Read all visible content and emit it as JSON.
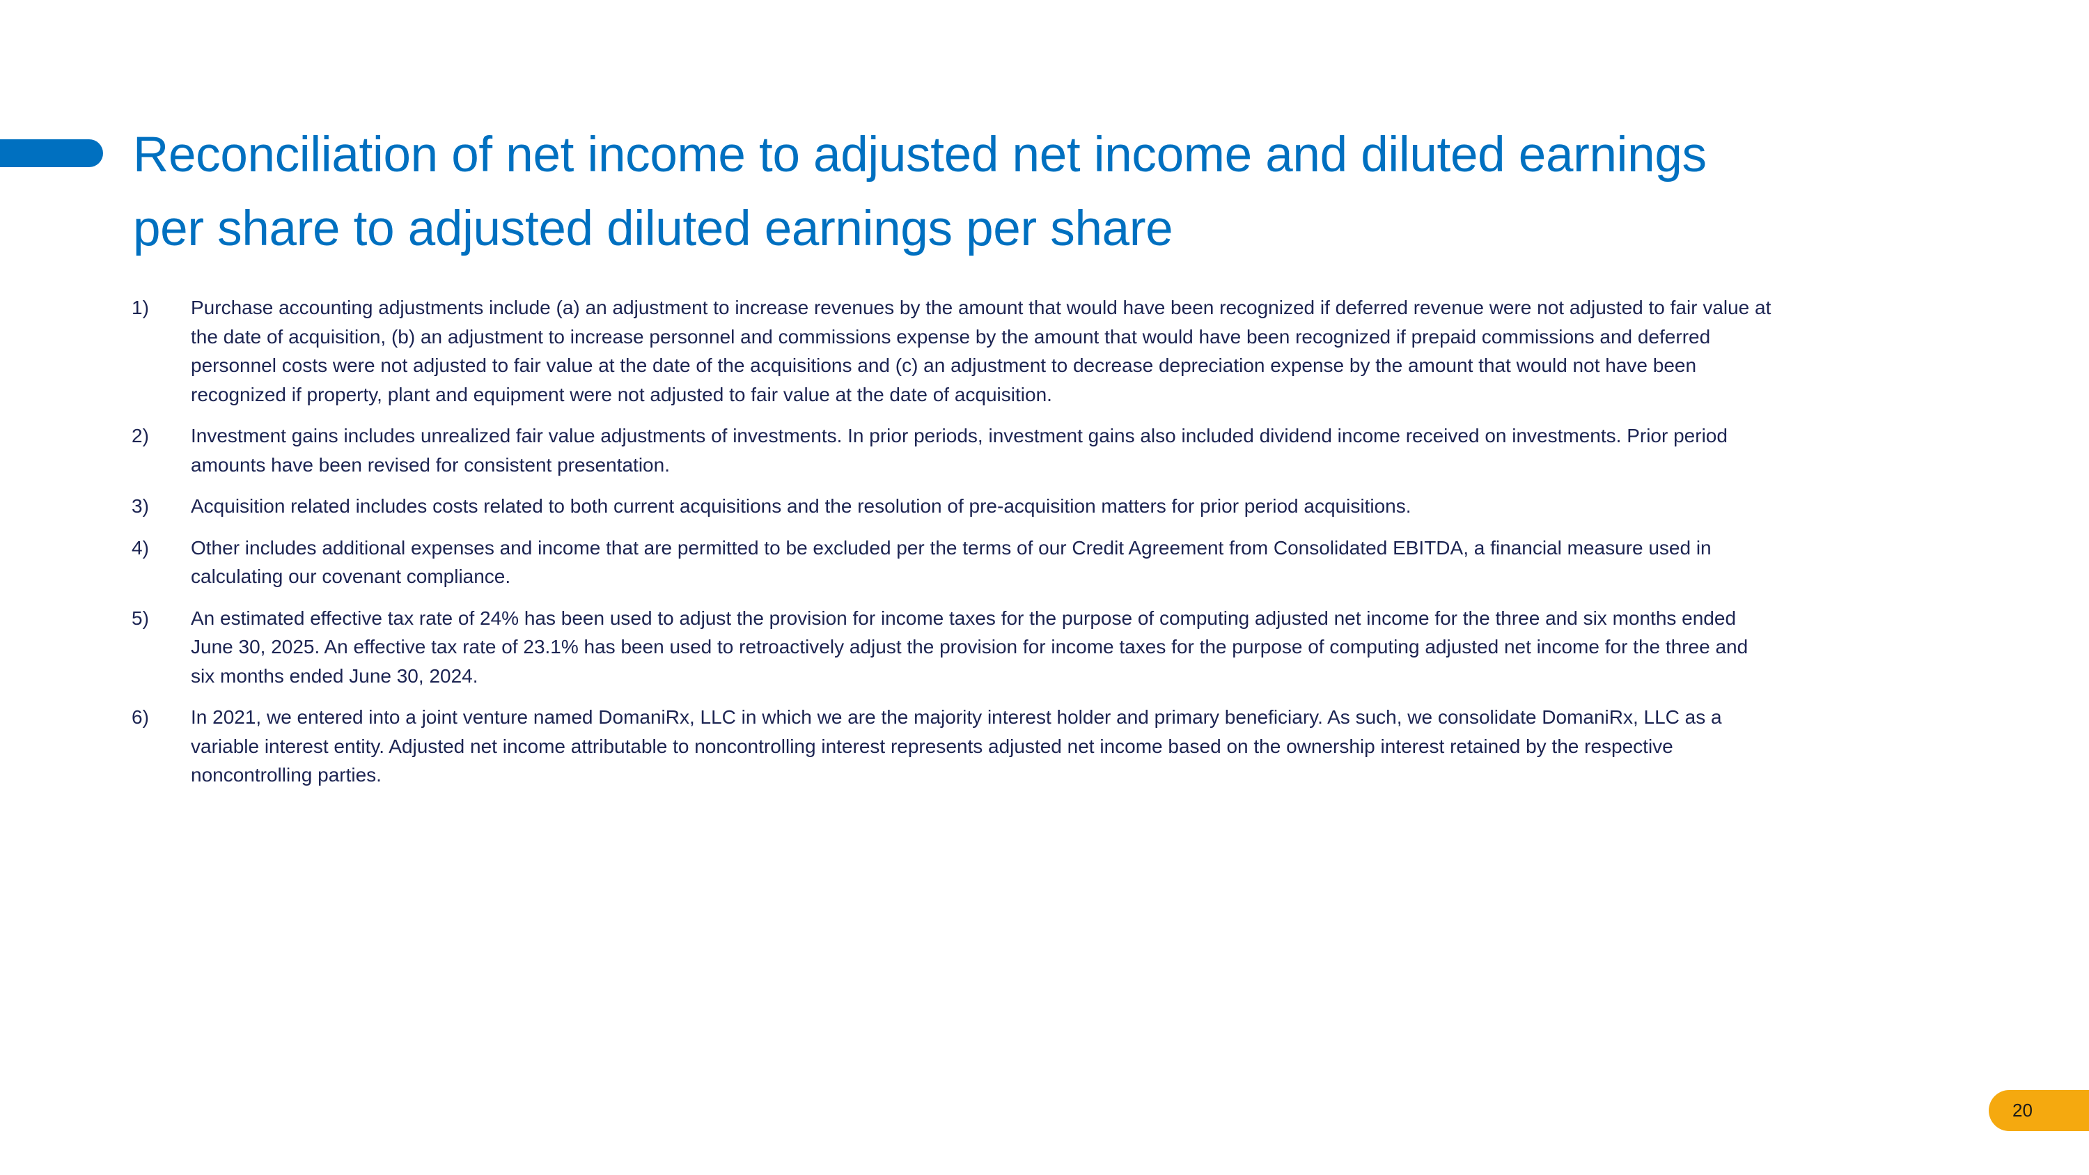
{
  "title": {
    "lines": [
      "Reconciliation of net income to adjusted net income and diluted earnings",
      "per share to adjusted diluted earnings per share"
    ]
  },
  "notes": [
    {
      "number": "1)",
      "lines": [
        "Purchase accounting adjustments include (a) an adjustment to increase revenues by the amount that would have been recognized if deferred revenue were not adjusted to fair value at",
        "the date of acquisition, (b) an adjustment to increase personnel and commissions expense by the amount that would have been recognized if prepaid commissions and deferred",
        "personnel costs were not adjusted to fair value at the date of the acquisitions and (c) an adjustment to decrease depreciation expense by the amount that would not have been",
        "recognized if property, plant and equipment were not adjusted to fair value at the date of acquisition."
      ]
    },
    {
      "number": "2)",
      "lines": [
        "Investment gains includes unrealized fair value adjustments of investments.  In prior periods, investment gains also included dividend income received on investments.  Prior period",
        "amounts have been revised for consistent presentation."
      ]
    },
    {
      "number": "3)",
      "lines": [
        "Acquisition related includes costs related to both current acquisitions and the resolution of pre-acquisition matters for prior period acquisitions."
      ]
    },
    {
      "number": "4)",
      "lines": [
        "Other includes additional expenses and income that are permitted to be excluded per the terms of our Credit Agreement from Consolidated EBITDA, a financial measure used in",
        "calculating our covenant compliance."
      ]
    },
    {
      "number": "5)",
      "lines": [
        "An estimated effective tax rate of 24% has been used to adjust the provision for income taxes for the purpose of computing adjusted net income for the three and six months ended",
        "June 30, 2025.  An effective tax rate of 23.1% has been used to retroactively adjust the provision for income taxes for the purpose of computing adjusted net income for the three and",
        "six months ended June 30, 2024."
      ]
    },
    {
      "number": "6)",
      "lines": [
        "In 2021, we entered into a joint venture named DomaniRx, LLC in which we are the majority interest holder and primary beneficiary.  As such, we consolidate DomaniRx, LLC as a",
        "variable interest entity. Adjusted net income attributable to noncontrolling interest represents adjusted net income based on the ownership interest retained by the respective",
        "noncontrolling parties."
      ]
    }
  ],
  "page_number": "20",
  "colors": {
    "accent": "#0070c0",
    "page_badge": "#f5a90f",
    "body_text": "#1c2452"
  }
}
